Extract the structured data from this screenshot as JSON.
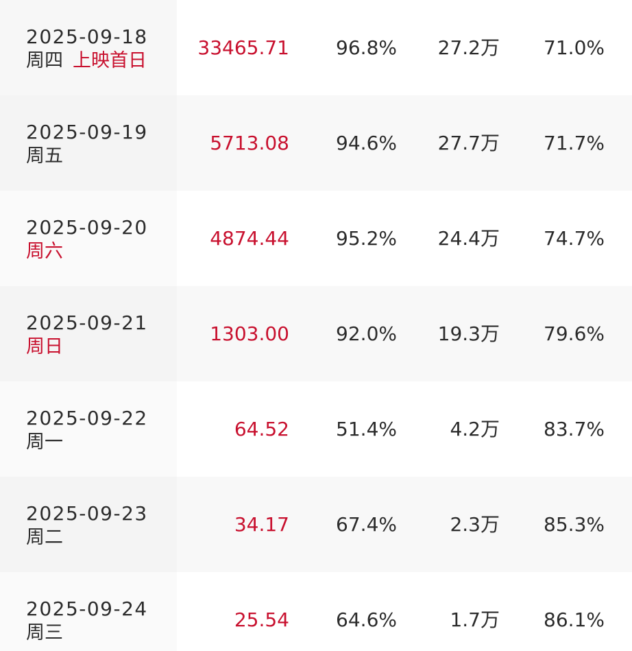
{
  "accent_color": "#c8102e",
  "rows": [
    {
      "date": "2025-09-18",
      "weekday": "周四",
      "tag": "上映首日",
      "weekend": false,
      "box_office": "33465.71",
      "share": "96.8%",
      "screenings": "27.2万",
      "rate": "71.0%"
    },
    {
      "date": "2025-09-19",
      "weekday": "周五",
      "tag": "",
      "weekend": false,
      "box_office": "5713.08",
      "share": "94.6%",
      "screenings": "27.7万",
      "rate": "71.7%"
    },
    {
      "date": "2025-09-20",
      "weekday": "周六",
      "tag": "",
      "weekend": true,
      "box_office": "4874.44",
      "share": "95.2%",
      "screenings": "24.4万",
      "rate": "74.7%"
    },
    {
      "date": "2025-09-21",
      "weekday": "周日",
      "tag": "",
      "weekend": true,
      "box_office": "1303.00",
      "share": "92.0%",
      "screenings": "19.3万",
      "rate": "79.6%"
    },
    {
      "date": "2025-09-22",
      "weekday": "周一",
      "tag": "",
      "weekend": false,
      "box_office": "64.52",
      "share": "51.4%",
      "screenings": "4.2万",
      "rate": "83.7%"
    },
    {
      "date": "2025-09-23",
      "weekday": "周二",
      "tag": "",
      "weekend": false,
      "box_office": "34.17",
      "share": "67.4%",
      "screenings": "2.3万",
      "rate": "85.3%"
    },
    {
      "date": "2025-09-24",
      "weekday": "周三",
      "tag": "",
      "weekend": false,
      "box_office": "25.54",
      "share": "64.6%",
      "screenings": "1.7万",
      "rate": "86.1%"
    }
  ]
}
